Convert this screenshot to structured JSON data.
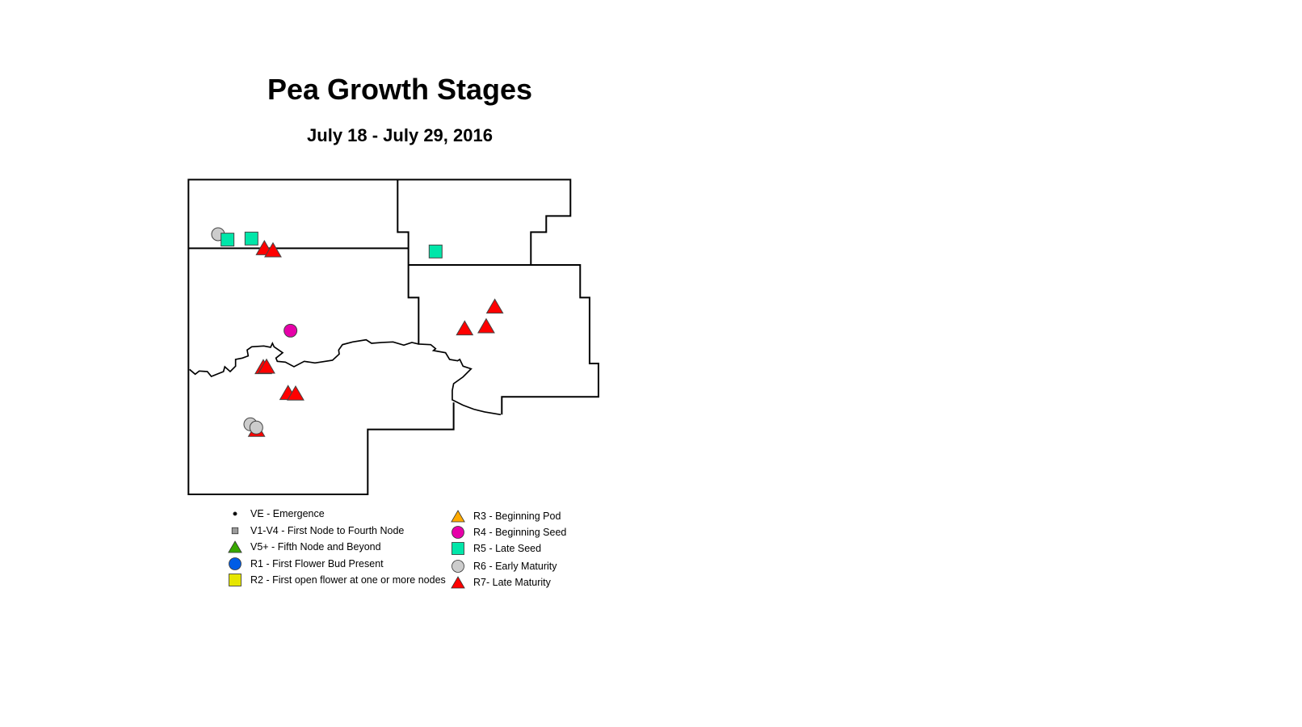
{
  "title": "Pea Growth Stages",
  "subtitle": "July 18 - July 29, 2016",
  "legend": {
    "left": [
      {
        "label": "VE - Emergence",
        "symbol": "dot",
        "color": "#000000"
      },
      {
        "label": "V1-V4 - First Node to Fourth Node",
        "symbol": "small-square",
        "color": "#9c9c9c"
      },
      {
        "label": "V5+ - Fifth Node and Beyond",
        "symbol": "triangle",
        "color": "#38a800"
      },
      {
        "label": "R1 - First Flower Bud Present",
        "symbol": "circle",
        "color": "#005ce6"
      },
      {
        "label": "R2 - First open flower at one or more nodes",
        "symbol": "square",
        "color": "#e6e600"
      }
    ],
    "right": [
      {
        "label": "R3 - Beginning Pod",
        "symbol": "triangle",
        "color": "#ffaa00"
      },
      {
        "label": "R4 - Beginning Seed",
        "symbol": "circle",
        "color": "#e600a9"
      },
      {
        "label": "R5 - Late Seed",
        "symbol": "square",
        "color": "#00e6a9"
      },
      {
        "label": "R6 - Early Maturity",
        "symbol": "circle",
        "color": "#cccccc"
      },
      {
        "label": "R7- Late Maturity",
        "symbol": "triangle",
        "color": "#ff0000"
      }
    ]
  }
}
